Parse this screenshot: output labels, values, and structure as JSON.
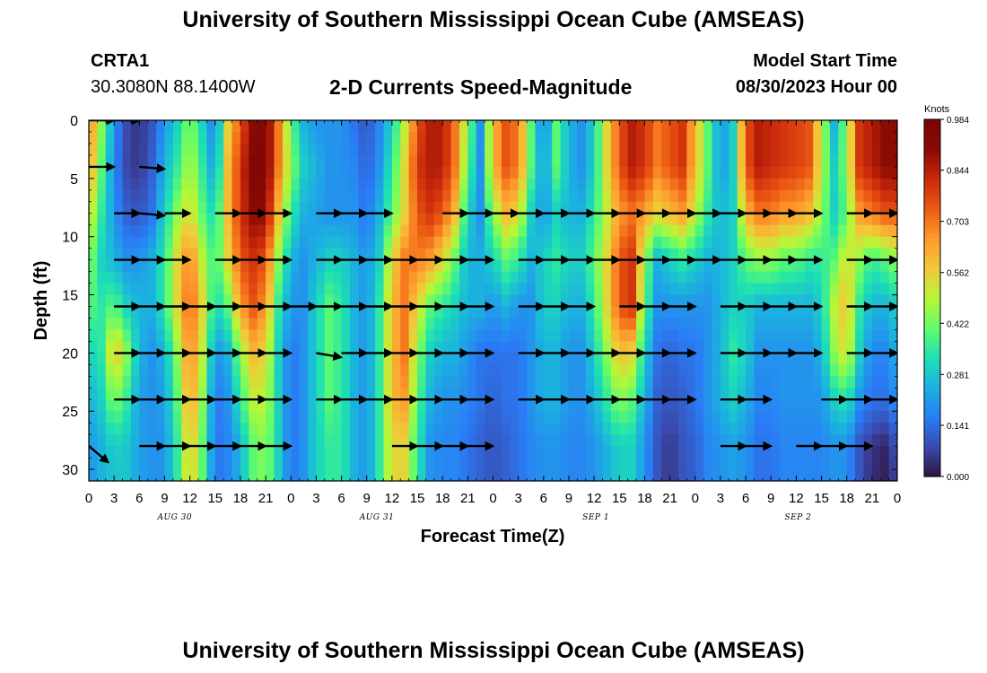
{
  "page": {
    "title_top": "University of Southern Mississippi Ocean Cube (AMSEAS)",
    "title_bottom": "University of Southern Mississippi Ocean Cube (AMSEAS)",
    "station_id": "CRTA1",
    "station_coords": "30.3080N  88.1400W",
    "plot_title": "2-D Currents Speed-Magnitude",
    "model_start_label": "Model Start Time",
    "model_start_value": "08/30/2023 Hour 00"
  },
  "colors": {
    "colormap": [
      "#30123b",
      "#3a4aae",
      "#2a7cf6",
      "#1bb1e0",
      "#1ee0b3",
      "#62fc6b",
      "#b8f636",
      "#f2c839",
      "#fe9b2d",
      "#ec5b13",
      "#c9290b",
      "#8a0a04",
      "#7a0403"
    ],
    "arrow": "#000000"
  },
  "chart_data": {
    "type": "heatmap",
    "title": "2-D Currents Speed-Magnitude",
    "xlabel": "Forecast Time(Z)",
    "ylabel": "Depth (ft)",
    "xlim": [
      0,
      96
    ],
    "ylim": [
      0,
      31
    ],
    "y_inverted": true,
    "x_ticks": [
      0,
      3,
      6,
      9,
      12,
      15,
      18,
      21,
      24,
      27,
      30,
      33,
      36,
      39,
      42,
      45,
      48,
      51,
      54,
      57,
      60,
      63,
      66,
      69,
      72,
      75,
      78,
      81,
      84,
      87,
      90,
      93,
      96
    ],
    "x_tick_labels": [
      "0",
      "3",
      "6",
      "9",
      "12",
      "15",
      "18",
      "21",
      "0",
      "3",
      "6",
      "9",
      "12",
      "15",
      "18",
      "21",
      "0",
      "3",
      "6",
      "9",
      "12",
      "15",
      "18",
      "21",
      "0",
      "3",
      "6",
      "9",
      "12",
      "15",
      "18",
      "21",
      "0"
    ],
    "y_ticks": [
      0,
      5,
      10,
      15,
      20,
      25,
      30
    ],
    "y_tick_labels": [
      "0",
      "5",
      "10",
      "15",
      "20",
      "25",
      "30"
    ],
    "date_labels": [
      {
        "x": 10,
        "text": "AUG 30"
      },
      {
        "x": 34,
        "text": "AUG 31"
      },
      {
        "x": 60,
        "text": "SEP 1"
      },
      {
        "x": 84,
        "text": "SEP 2"
      }
    ],
    "colorbar": {
      "unit_label": "Knots",
      "min": 0.0,
      "max": 0.984,
      "tick_values": [
        0.0,
        0.141,
        0.281,
        0.422,
        0.562,
        0.703,
        0.844,
        0.984
      ],
      "tick_labels": [
        "0.000",
        "0.141",
        "0.281",
        "0.422",
        "0.562",
        "0.703",
        "0.844",
        "0.984"
      ]
    },
    "speed_field": {
      "times": [
        0,
        1.5,
        3,
        4.5,
        6,
        7.5,
        9,
        10.5,
        12,
        13.5,
        15,
        16.5,
        18,
        19.5,
        21,
        22.5,
        24,
        25.5,
        27,
        28.5,
        30,
        31.5,
        33,
        34.5,
        36,
        37.5,
        39,
        40.5,
        42,
        43.5,
        45,
        46.5,
        48,
        49.5,
        51,
        52.5,
        54,
        55.5,
        57,
        58.5,
        60,
        61.5,
        63,
        64.5,
        66,
        67.5,
        69,
        70.5,
        72,
        73.5,
        75,
        76.5,
        78,
        79.5,
        81,
        82.5,
        84,
        85.5,
        87,
        88.5,
        90,
        91.5,
        93,
        94.5,
        96
      ],
      "depths": [
        0,
        4,
        8,
        12,
        16,
        20,
        24,
        28,
        31
      ],
      "values": [
        [
          0.7,
          0.45,
          0.2,
          0.08,
          0.05,
          0.1,
          0.2,
          0.3,
          0.45,
          0.3,
          0.15,
          0.55,
          0.75,
          0.9,
          0.95,
          0.7,
          0.4,
          0.25,
          0.2,
          0.2,
          0.2,
          0.15,
          0.1,
          0.18,
          0.3,
          0.5,
          0.75,
          0.85,
          0.85,
          0.7,
          0.45,
          0.2,
          0.6,
          0.75,
          0.7,
          0.4,
          0.15,
          0.4,
          0.25,
          0.2,
          0.3,
          0.55,
          0.75,
          0.85,
          0.8,
          0.7,
          0.75,
          0.8,
          0.6,
          0.4,
          0.2,
          0.3,
          0.75,
          0.85,
          0.82,
          0.8,
          0.78,
          0.75,
          0.5,
          0.25,
          0.45,
          0.8,
          0.85,
          0.9,
          0.9
        ],
        [
          0.65,
          0.4,
          0.18,
          0.08,
          0.05,
          0.12,
          0.25,
          0.35,
          0.5,
          0.35,
          0.2,
          0.6,
          0.8,
          0.95,
          0.95,
          0.7,
          0.45,
          0.3,
          0.25,
          0.2,
          0.2,
          0.18,
          0.12,
          0.2,
          0.35,
          0.55,
          0.8,
          0.85,
          0.85,
          0.7,
          0.4,
          0.2,
          0.6,
          0.75,
          0.7,
          0.4,
          0.2,
          0.4,
          0.25,
          0.2,
          0.3,
          0.55,
          0.75,
          0.85,
          0.8,
          0.7,
          0.75,
          0.8,
          0.6,
          0.4,
          0.2,
          0.3,
          0.75,
          0.85,
          0.82,
          0.8,
          0.78,
          0.75,
          0.5,
          0.3,
          0.45,
          0.8,
          0.85,
          0.9,
          0.9
        ],
        [
          0.55,
          0.35,
          0.2,
          0.12,
          0.1,
          0.15,
          0.3,
          0.45,
          0.55,
          0.4,
          0.3,
          0.6,
          0.8,
          0.9,
          0.9,
          0.6,
          0.35,
          0.25,
          0.22,
          0.2,
          0.2,
          0.2,
          0.15,
          0.25,
          0.4,
          0.55,
          0.75,
          0.8,
          0.75,
          0.6,
          0.3,
          0.2,
          0.45,
          0.6,
          0.55,
          0.3,
          0.2,
          0.3,
          0.25,
          0.25,
          0.35,
          0.5,
          0.65,
          0.7,
          0.65,
          0.55,
          0.6,
          0.65,
          0.5,
          0.35,
          0.25,
          0.3,
          0.6,
          0.7,
          0.7,
          0.65,
          0.65,
          0.6,
          0.45,
          0.3,
          0.4,
          0.65,
          0.7,
          0.75,
          0.75
        ],
        [
          0.45,
          0.3,
          0.25,
          0.2,
          0.2,
          0.25,
          0.35,
          0.55,
          0.7,
          0.5,
          0.35,
          0.55,
          0.75,
          0.8,
          0.75,
          0.45,
          0.25,
          0.2,
          0.25,
          0.3,
          0.3,
          0.25,
          0.2,
          0.3,
          0.55,
          0.7,
          0.7,
          0.65,
          0.55,
          0.4,
          0.25,
          0.25,
          0.3,
          0.4,
          0.35,
          0.25,
          0.3,
          0.35,
          0.3,
          0.3,
          0.4,
          0.55,
          0.75,
          0.8,
          0.45,
          0.25,
          0.3,
          0.35,
          0.3,
          0.25,
          0.25,
          0.3,
          0.4,
          0.45,
          0.45,
          0.4,
          0.4,
          0.35,
          0.35,
          0.4,
          0.55,
          0.45,
          0.35,
          0.4,
          0.45
        ],
        [
          0.4,
          0.35,
          0.4,
          0.3,
          0.25,
          0.25,
          0.35,
          0.55,
          0.75,
          0.55,
          0.3,
          0.4,
          0.65,
          0.75,
          0.65,
          0.35,
          0.2,
          0.2,
          0.3,
          0.4,
          0.35,
          0.25,
          0.2,
          0.35,
          0.6,
          0.7,
          0.55,
          0.4,
          0.35,
          0.3,
          0.25,
          0.25,
          0.2,
          0.25,
          0.2,
          0.2,
          0.3,
          0.3,
          0.25,
          0.25,
          0.35,
          0.55,
          0.75,
          0.8,
          0.4,
          0.2,
          0.2,
          0.2,
          0.2,
          0.2,
          0.25,
          0.3,
          0.3,
          0.25,
          0.25,
          0.25,
          0.25,
          0.25,
          0.3,
          0.5,
          0.6,
          0.35,
          0.25,
          0.25,
          0.3
        ],
        [
          0.3,
          0.35,
          0.6,
          0.45,
          0.25,
          0.2,
          0.25,
          0.45,
          0.7,
          0.5,
          0.2,
          0.25,
          0.45,
          0.6,
          0.55,
          0.3,
          0.15,
          0.2,
          0.3,
          0.4,
          0.35,
          0.25,
          0.2,
          0.35,
          0.6,
          0.7,
          0.45,
          0.3,
          0.25,
          0.25,
          0.2,
          0.15,
          0.15,
          0.15,
          0.15,
          0.2,
          0.25,
          0.25,
          0.2,
          0.2,
          0.3,
          0.45,
          0.6,
          0.55,
          0.3,
          0.15,
          0.12,
          0.15,
          0.15,
          0.2,
          0.25,
          0.35,
          0.3,
          0.2,
          0.2,
          0.2,
          0.2,
          0.2,
          0.25,
          0.45,
          0.55,
          0.3,
          0.18,
          0.18,
          0.25
        ],
        [
          0.25,
          0.3,
          0.45,
          0.35,
          0.22,
          0.2,
          0.22,
          0.4,
          0.65,
          0.45,
          0.15,
          0.2,
          0.35,
          0.5,
          0.5,
          0.3,
          0.15,
          0.2,
          0.3,
          0.4,
          0.35,
          0.25,
          0.2,
          0.35,
          0.6,
          0.65,
          0.4,
          0.25,
          0.2,
          0.2,
          0.18,
          0.15,
          0.12,
          0.15,
          0.15,
          0.2,
          0.25,
          0.25,
          0.2,
          0.2,
          0.25,
          0.35,
          0.45,
          0.4,
          0.25,
          0.12,
          0.1,
          0.12,
          0.15,
          0.2,
          0.25,
          0.3,
          0.25,
          0.18,
          0.18,
          0.2,
          0.2,
          0.2,
          0.2,
          0.3,
          0.35,
          0.2,
          0.15,
          0.15,
          0.2
        ],
        [
          0.2,
          0.25,
          0.3,
          0.28,
          0.22,
          0.2,
          0.2,
          0.35,
          0.6,
          0.4,
          0.15,
          0.18,
          0.25,
          0.4,
          0.45,
          0.3,
          0.15,
          0.2,
          0.3,
          0.35,
          0.35,
          0.25,
          0.2,
          0.35,
          0.55,
          0.55,
          0.35,
          0.2,
          0.18,
          0.18,
          0.15,
          0.12,
          0.1,
          0.12,
          0.15,
          0.18,
          0.2,
          0.2,
          0.18,
          0.18,
          0.2,
          0.25,
          0.3,
          0.3,
          0.2,
          0.1,
          0.05,
          0.1,
          0.12,
          0.18,
          0.2,
          0.22,
          0.2,
          0.15,
          0.15,
          0.18,
          0.18,
          0.18,
          0.18,
          0.2,
          0.2,
          0.1,
          0.05,
          0.03,
          0.1
        ],
        [
          0.2,
          0.25,
          0.28,
          0.28,
          0.22,
          0.2,
          0.2,
          0.35,
          0.58,
          0.4,
          0.15,
          0.18,
          0.25,
          0.4,
          0.45,
          0.3,
          0.15,
          0.2,
          0.3,
          0.35,
          0.35,
          0.25,
          0.2,
          0.35,
          0.55,
          0.55,
          0.35,
          0.2,
          0.18,
          0.18,
          0.15,
          0.12,
          0.1,
          0.12,
          0.15,
          0.18,
          0.2,
          0.2,
          0.18,
          0.18,
          0.2,
          0.25,
          0.3,
          0.3,
          0.2,
          0.1,
          0.05,
          0.1,
          0.12,
          0.18,
          0.2,
          0.22,
          0.2,
          0.15,
          0.15,
          0.18,
          0.18,
          0.18,
          0.18,
          0.2,
          0.2,
          0.1,
          0.04,
          0.02,
          0.08
        ]
      ]
    },
    "vector_depths": [
      0,
      4,
      8,
      12,
      16,
      20,
      24,
      28
    ],
    "vector_note": "Current direction arrows (deg clockwise from east on screen) at 3-hour steps; null = no arrow",
    "vector_angles": [
      [
        0,
        0,
        null,
        null,
        null,
        null,
        null,
        null,
        null,
        null,
        null,
        null,
        null,
        null,
        null,
        null,
        null,
        null,
        null,
        null,
        null,
        null,
        null,
        null,
        null,
        null,
        null,
        null,
        null,
        null,
        null,
        null,
        0
      ],
      [
        0,
        null,
        5,
        null,
        null,
        null,
        null,
        null,
        null,
        null,
        null,
        null,
        null,
        null,
        null,
        null,
        null,
        null,
        null,
        null,
        null,
        null,
        null,
        null,
        null,
        null,
        null,
        null,
        null,
        null,
        null,
        null,
        0
      ],
      [
        null,
        0,
        5,
        0,
        null,
        0,
        0,
        0,
        null,
        0,
        0,
        0,
        null,
        null,
        0,
        0,
        0,
        0,
        0,
        0,
        0,
        0,
        0,
        0,
        0,
        0,
        0,
        0,
        0,
        null,
        0,
        0,
        0
      ],
      [
        null,
        0,
        0,
        0,
        null,
        0,
        0,
        0,
        null,
        0,
        0,
        0,
        0,
        0,
        0,
        0,
        null,
        0,
        0,
        0,
        0,
        0,
        0,
        0,
        0,
        0,
        0,
        0,
        0,
        null,
        0,
        0,
        0
      ],
      [
        null,
        0,
        0,
        0,
        0,
        0,
        0,
        0,
        0,
        0,
        0,
        0,
        0,
        0,
        0,
        0,
        null,
        0,
        0,
        0,
        null,
        0,
        0,
        0,
        null,
        0,
        0,
        0,
        0,
        null,
        0,
        0,
        0
      ],
      [
        null,
        0,
        0,
        0,
        0,
        0,
        0,
        0,
        null,
        10,
        0,
        0,
        0,
        0,
        0,
        0,
        null,
        0,
        0,
        0,
        0,
        0,
        0,
        0,
        null,
        0,
        0,
        0,
        0,
        null,
        0,
        0,
        0
      ],
      [
        null,
        0,
        0,
        0,
        0,
        0,
        0,
        0,
        null,
        0,
        0,
        0,
        0,
        0,
        0,
        0,
        null,
        0,
        0,
        0,
        0,
        0,
        0,
        0,
        null,
        0,
        0,
        null,
        null,
        0,
        0,
        0,
        0
      ],
      [
        40,
        null,
        0,
        0,
        0,
        0,
        0,
        0,
        null,
        null,
        null,
        null,
        0,
        0,
        0,
        0,
        null,
        null,
        null,
        null,
        null,
        null,
        null,
        null,
        null,
        0,
        0,
        null,
        0,
        0,
        0,
        null,
        0
      ]
    ]
  }
}
